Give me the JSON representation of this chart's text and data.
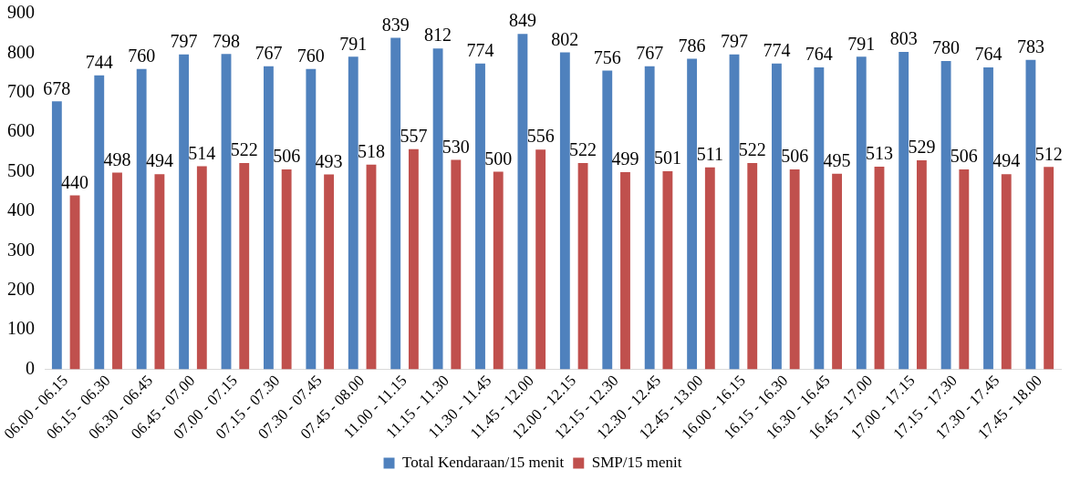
{
  "chart_data": {
    "type": "bar",
    "categories": [
      "06.00 - 06.15",
      "06.15 - 06.30",
      "06.30 - 06.45",
      "06.45 - 07.00",
      "07.00 - 07.15",
      "07.15 - 07.30",
      "07.30 - 07.45",
      "07.45 - 08.00",
      "11.00 - 11.15",
      "11.15 - 11.30",
      "11.30 - 11.45",
      "11.45 - 12.00",
      "12.00 - 12.15",
      "12.15 - 12.30",
      "12.30 - 12.45",
      "12.45 - 13.00",
      "16.00 - 16.15",
      "16.15 - 16.30",
      "16.30 - 16.45",
      "16.45 - 17.00",
      "17.00 - 17.15",
      "17.15 - 17.30",
      "17.30 - 17.45",
      "17.45 - 18.00"
    ],
    "series": [
      {
        "name": "Total Kendaraan/15 menit",
        "color": "#4f81bd",
        "values": [
          678,
          744,
          760,
          797,
          798,
          767,
          760,
          791,
          839,
          812,
          774,
          849,
          802,
          756,
          767,
          786,
          797,
          774,
          764,
          791,
          803,
          780,
          764,
          783
        ]
      },
      {
        "name": "SMP/15 menit",
        "color": "#c0504d",
        "values": [
          440,
          498,
          494,
          514,
          522,
          506,
          493,
          518,
          557,
          530,
          500,
          556,
          522,
          499,
          501,
          511,
          522,
          506,
          495,
          513,
          529,
          506,
          494,
          512
        ]
      }
    ],
    "ylim": [
      0,
      900
    ],
    "yticks": [
      0,
      100,
      200,
      300,
      400,
      500,
      600,
      700,
      800,
      900
    ],
    "grid": false,
    "legend": "bottom",
    "data_labels": true
  }
}
